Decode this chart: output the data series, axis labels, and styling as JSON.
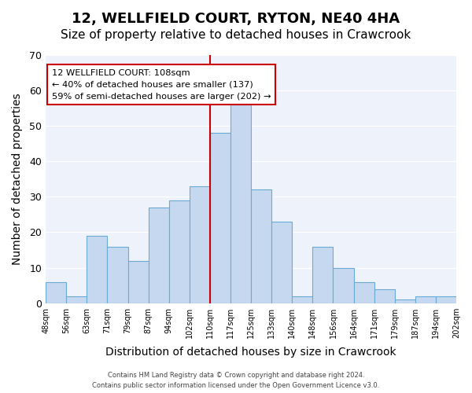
{
  "title": "12, WELLFIELD COURT, RYTON, NE40 4HA",
  "subtitle": "Size of property relative to detached houses in Crawcrook",
  "xlabel": "Distribution of detached houses by size in Crawcrook",
  "ylabel": "Number of detached properties",
  "bin_labels": [
    "48sqm",
    "56sqm",
    "63sqm",
    "71sqm",
    "79sqm",
    "87sqm",
    "94sqm",
    "102sqm",
    "110sqm",
    "117sqm",
    "125sqm",
    "133sqm",
    "140sqm",
    "148sqm",
    "156sqm",
    "164sqm",
    "171sqm",
    "179sqm",
    "187sqm",
    "194sqm",
    "202sqm"
  ],
  "bar_heights": [
    6,
    2,
    19,
    16,
    12,
    27,
    29,
    33,
    48,
    57,
    32,
    23,
    2,
    16,
    10,
    6,
    4,
    1,
    2,
    2
  ],
  "bar_color": "#c5d8f0",
  "bar_edge_color": "#6aaad4",
  "vline_x_index": 8,
  "vline_color": "#cc0000",
  "annotation_text": "12 WELLFIELD COURT: 108sqm\n← 40% of detached houses are smaller (137)\n59% of semi-detached houses are larger (202) →",
  "annotation_box_edgecolor": "#cc0000",
  "annotation_box_facecolor": "#ffffff",
  "ylim": [
    0,
    70
  ],
  "yticks": [
    0,
    10,
    20,
    30,
    40,
    50,
    60,
    70
  ],
  "background_color": "#eef2fb",
  "footer_line1": "Contains HM Land Registry data © Crown copyright and database right 2024.",
  "footer_line2": "Contains public sector information licensed under the Open Government Licence v3.0.",
  "title_fontsize": 13,
  "subtitle_fontsize": 11,
  "xlabel_fontsize": 10,
  "ylabel_fontsize": 10
}
